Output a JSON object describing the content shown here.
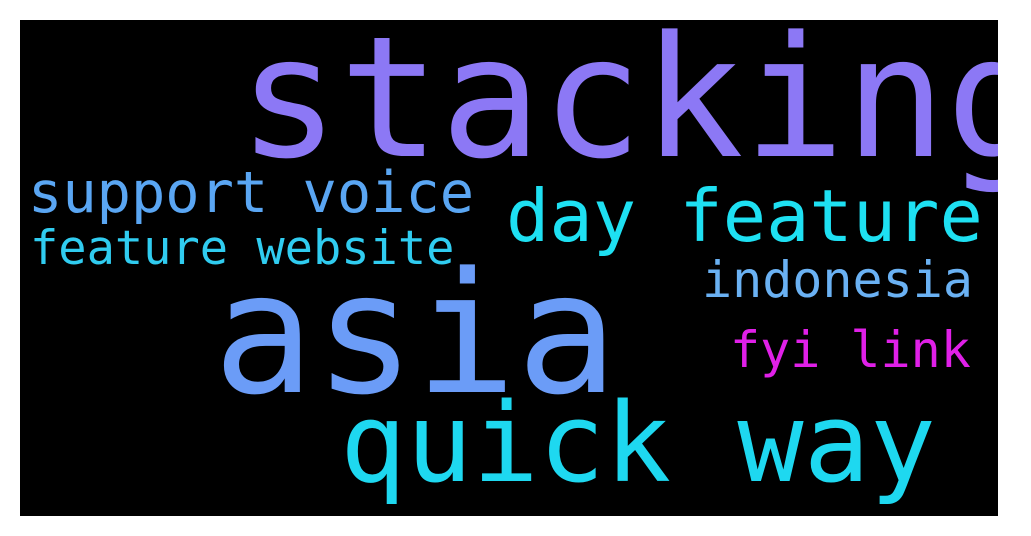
{
  "words": [
    {
      "text": "stacking",
      "color": "#8c78f5"
    },
    {
      "text": "support voice",
      "color": "#5aa6f3"
    },
    {
      "text": "day feature",
      "color": "#1ee0f2"
    },
    {
      "text": "feature website",
      "color": "#30ccf0"
    },
    {
      "text": "asia",
      "color": "#6b9cf7"
    },
    {
      "text": "indonesia",
      "color": "#6ab1f3"
    },
    {
      "text": "fyi link",
      "color": "#e020e8"
    },
    {
      "text": "quick way",
      "color": "#1ed8f0"
    }
  ]
}
